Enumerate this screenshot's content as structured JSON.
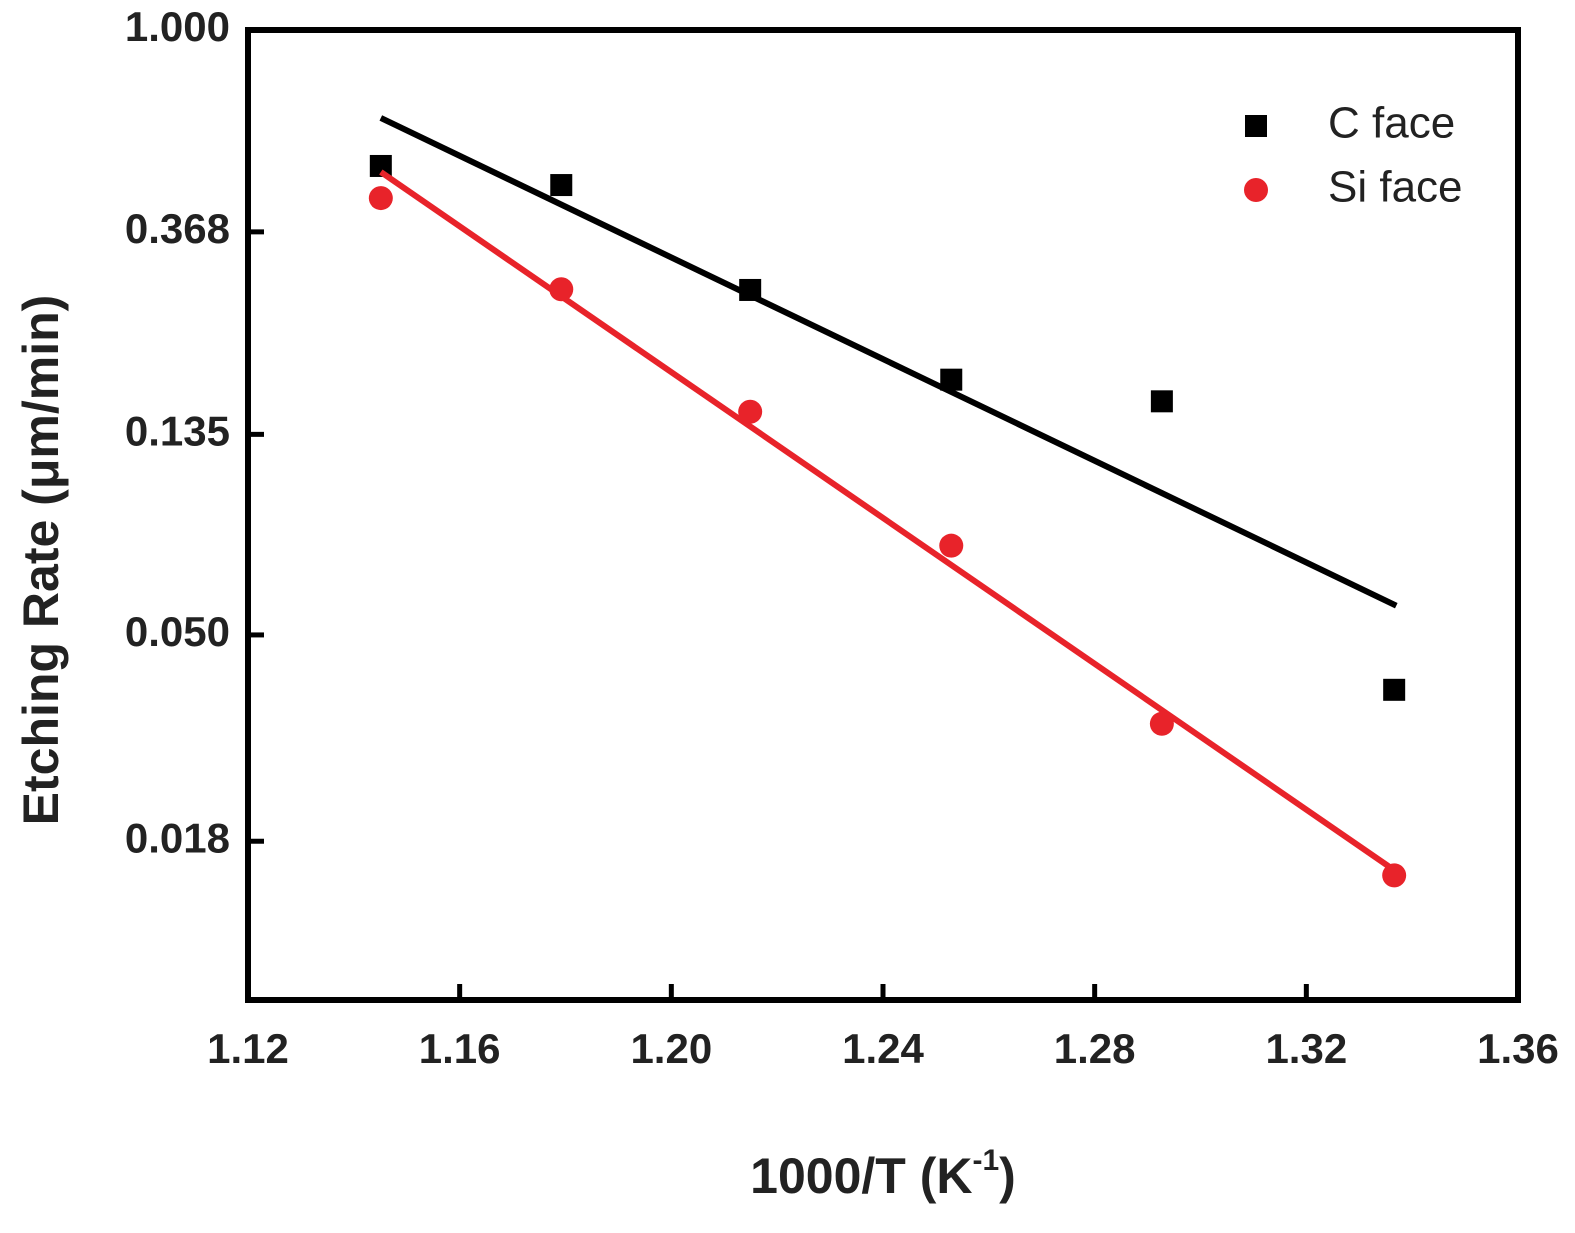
{
  "chart_data": {
    "type": "scatter",
    "xlabel": {
      "text": "1000/T (K",
      "sup": "-1",
      "end": ")"
    },
    "ylabel": "Etching Rate (μm/min)",
    "xlim": [
      1.12,
      1.36
    ],
    "xticks": [
      1.12,
      1.16,
      {
        "value": 1.2,
        "label": "1.20"
      },
      1.24,
      1.28,
      1.32,
      1.36
    ],
    "ylim": [
      0.0082,
      1
    ],
    "yticks": [
      {
        "value": 1,
        "label": "1.000"
      },
      0.368,
      0.135,
      {
        "value": 0.05,
        "label": "0.050"
      },
      0.018
    ],
    "log_y": true,
    "legend": "upper right",
    "series": [
      {
        "name": "C face",
        "color": "#000000",
        "marker": "square",
        "x": [
          1.1451,
          1.1792,
          1.2149,
          1.2529,
          1.2927,
          1.3366
        ],
        "values": [
          0.51,
          0.464,
          0.276,
          0.177,
          0.159,
          0.0381
        ],
        "fit": {
          "x": [
            1.1451,
            1.337
          ],
          "values": [
            0.647,
            0.0578
          ]
        }
      },
      {
        "name": "Si face",
        "color": "#e8232a",
        "marker": "circle",
        "x": [
          1.1451,
          1.1792,
          1.2149,
          1.2529,
          1.2927,
          1.3366
        ],
        "values": [
          0.435,
          0.277,
          0.151,
          0.0778,
          0.0322,
          0.0152
        ],
        "fit": {
          "x": [
            1.1451,
            1.3366
          ],
          "values": [
            0.495,
            0.0156
          ]
        }
      }
    ]
  }
}
